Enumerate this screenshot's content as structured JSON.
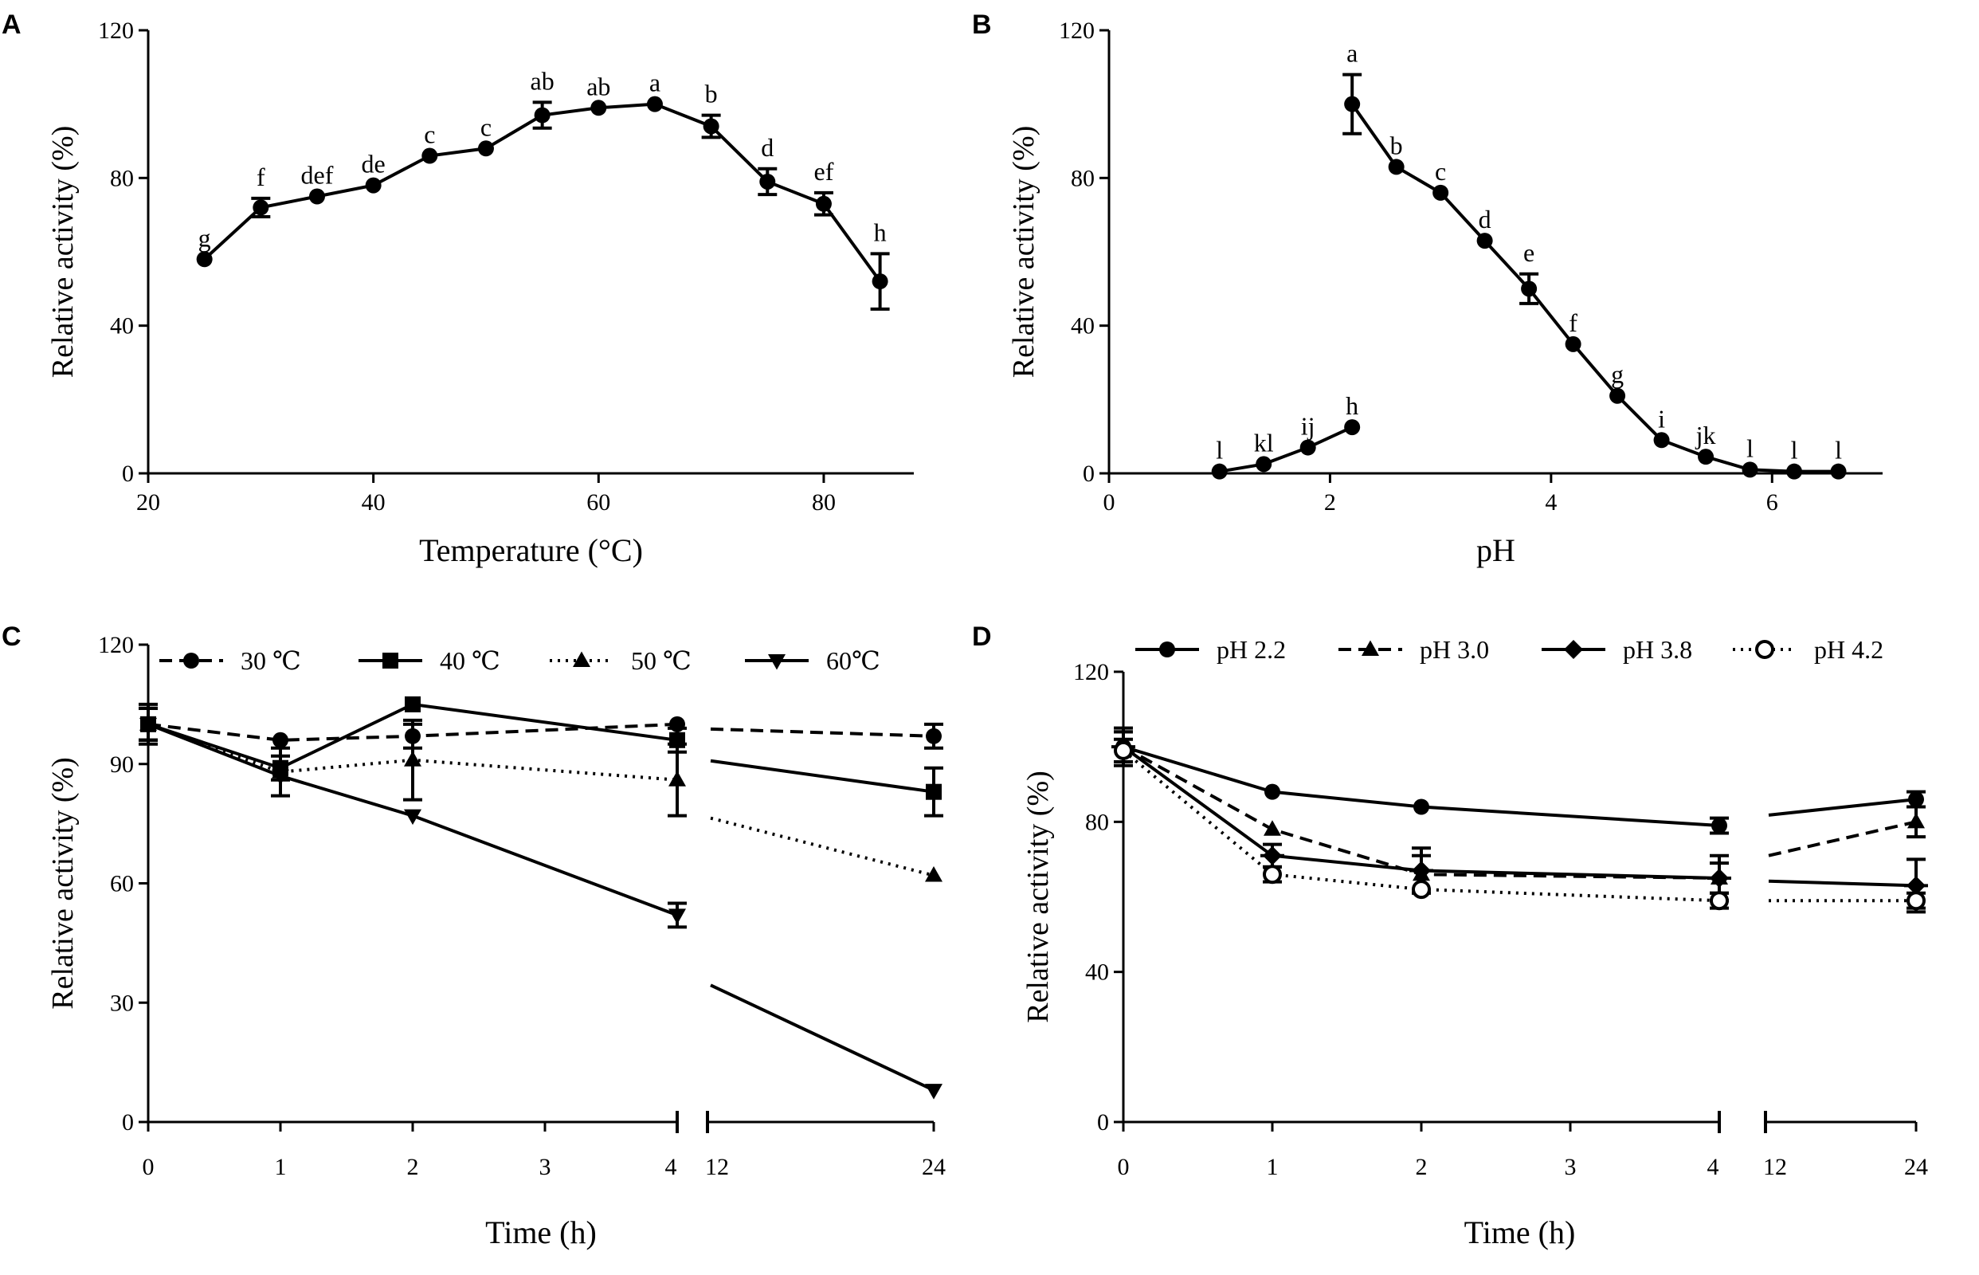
{
  "chart_data": [
    {
      "panel": "A",
      "type": "line",
      "xlabel": "Temperature (°C)",
      "ylabel": "Relative activity (%)",
      "xlim": [
        20,
        88
      ],
      "ylim": [
        0,
        120
      ],
      "xticks": [
        20,
        40,
        60,
        80
      ],
      "yticks": [
        0,
        40,
        80,
        120
      ],
      "series": [
        {
          "name": "Temperature",
          "marker": "circle",
          "x": [
            25,
            30,
            35,
            40,
            45,
            50,
            55,
            60,
            65,
            70,
            75,
            80,
            85
          ],
          "y": [
            58,
            72,
            75,
            78,
            86,
            88,
            97,
            99,
            100,
            94,
            79,
            73,
            52
          ],
          "err": [
            0,
            2.5,
            0,
            0,
            0,
            0,
            3.5,
            0,
            0,
            3,
            3.5,
            3,
            7.5
          ],
          "labels": [
            "g",
            "f",
            "def",
            "de",
            "c",
            "c",
            "ab",
            "ab",
            "a",
            "b",
            "d",
            "ef",
            "h"
          ]
        }
      ]
    },
    {
      "panel": "B",
      "type": "line",
      "xlabel": "pH",
      "ylabel": "Relative activity (%)",
      "xlim": [
        0,
        7
      ],
      "ylim": [
        0,
        120
      ],
      "xticks": [
        0,
        2,
        4,
        6
      ],
      "yticks": [
        0,
        40,
        80,
        120
      ],
      "series": [
        {
          "name": "low pH",
          "marker": "circle",
          "x": [
            1.0,
            1.4,
            1.8,
            2.2
          ],
          "y": [
            0.5,
            2.5,
            7,
            12.5
          ],
          "err": [
            0,
            0,
            0,
            0
          ],
          "labels": [
            "l",
            "kl",
            "ij",
            "h"
          ]
        },
        {
          "name": "high pH",
          "marker": "circle",
          "x": [
            2.2,
            2.6,
            3.0,
            3.4,
            3.8,
            4.2,
            4.6,
            5.0,
            5.4,
            5.8,
            6.2,
            6.6
          ],
          "y": [
            100,
            83,
            76,
            63,
            50,
            35,
            21,
            9,
            4.5,
            1,
            0.5,
            0.5
          ],
          "err": [
            8,
            0,
            0,
            0,
            4,
            0,
            0,
            0,
            0,
            0,
            0,
            0
          ],
          "labels": [
            "a",
            "b",
            "c",
            "d",
            "e",
            "f",
            "g",
            "i",
            "jk",
            "l",
            "l",
            "l"
          ]
        }
      ]
    },
    {
      "panel": "C",
      "type": "line",
      "xlabel": "Time (h)",
      "ylabel": "Relative activity (%)",
      "ylim": [
        0,
        120
      ],
      "yticks": [
        0,
        30,
        60,
        90,
        120
      ],
      "xticklabels": [
        "0",
        "1",
        "2",
        "3",
        "4",
        "12",
        "24"
      ],
      "x_break": "between 4 and 12",
      "series": [
        {
          "name": "30 ℃",
          "marker": "circle",
          "dash": "dashed",
          "x": [
            0,
            1,
            2,
            4,
            24
          ],
          "y": [
            100,
            96,
            97,
            100,
            97
          ],
          "err": [
            4,
            0,
            3,
            0,
            3
          ]
        },
        {
          "name": "40 ℃",
          "marker": "square",
          "dash": "solid",
          "x": [
            0,
            1,
            2,
            4,
            24
          ],
          "y": [
            100,
            89,
            105,
            96,
            83
          ],
          "err": [
            4,
            3,
            0,
            3,
            6
          ]
        },
        {
          "name": "50 ℃",
          "marker": "triangle-up",
          "dash": "dotted",
          "x": [
            0,
            1,
            2,
            4,
            24
          ],
          "y": [
            100,
            88,
            91,
            86,
            62
          ],
          "err": [
            4,
            6,
            10,
            9,
            0
          ]
        },
        {
          "name": "60℃",
          "marker": "triangle-down",
          "dash": "solid",
          "x": [
            0,
            1,
            2,
            4,
            24
          ],
          "y": [
            100,
            87,
            77,
            52,
            8
          ],
          "err": [
            5,
            0,
            0,
            3,
            0
          ]
        }
      ]
    },
    {
      "panel": "D",
      "type": "line",
      "xlabel": "Time (h)",
      "ylabel": "Relative activity (%)",
      "ylim": [
        0,
        120
      ],
      "yticks": [
        0,
        40,
        80,
        120
      ],
      "xticklabels": [
        "0",
        "1",
        "2",
        "3",
        "4",
        "12",
        "24"
      ],
      "x_break": "between 4 and 12",
      "series": [
        {
          "name": "pH 2.2",
          "marker": "circle",
          "dash": "solid",
          "x": [
            0,
            1,
            2,
            4,
            24
          ],
          "y": [
            100,
            88,
            84,
            79,
            86
          ],
          "err": [
            4,
            0,
            0,
            2,
            2
          ]
        },
        {
          "name": "pH 3.0",
          "marker": "triangle-up",
          "dash": "dashed",
          "x": [
            0,
            1,
            2,
            4,
            24
          ],
          "y": [
            100,
            78,
            66,
            65,
            80
          ],
          "err": [
            4,
            0,
            5,
            4,
            4
          ]
        },
        {
          "name": "pH 3.8",
          "marker": "diamond-cross",
          "dash": "solid",
          "x": [
            0,
            1,
            2,
            4,
            24
          ],
          "y": [
            100,
            71,
            67,
            65,
            63
          ],
          "err": [
            5,
            3,
            6,
            6,
            7
          ]
        },
        {
          "name": "pH 4.2",
          "marker": "circle-open",
          "dash": "dotted",
          "x": [
            0,
            1,
            2,
            4,
            24
          ],
          "y": [
            99,
            66,
            62,
            59,
            59
          ],
          "err": [
            3,
            2,
            0,
            2,
            2
          ]
        }
      ]
    }
  ],
  "panels": {
    "a": {
      "letter": "A"
    },
    "b": {
      "letter": "B"
    },
    "c": {
      "letter": "C"
    },
    "d": {
      "letter": "D"
    }
  }
}
